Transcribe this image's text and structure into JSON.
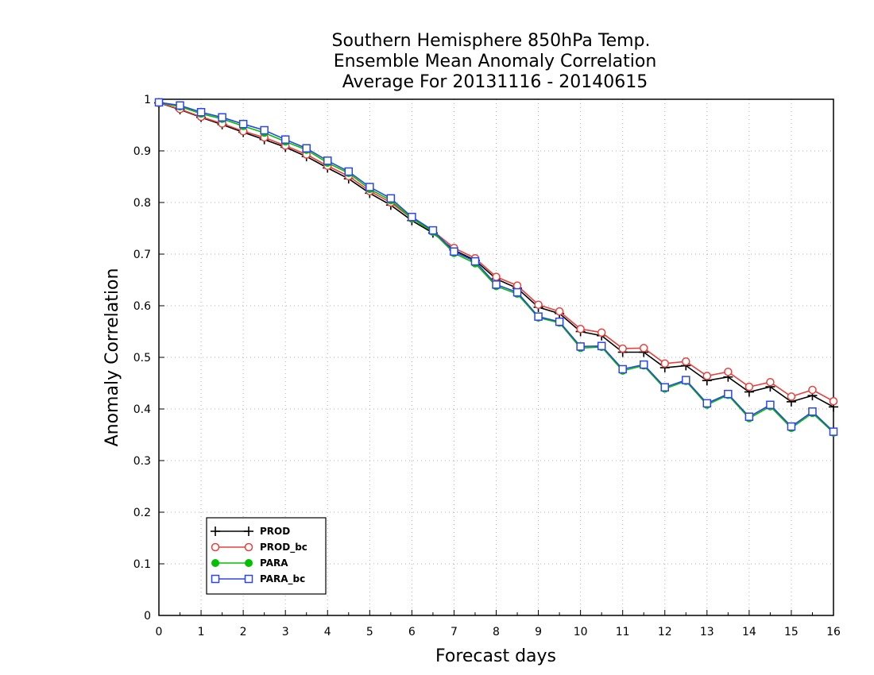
{
  "chart_data": {
    "type": "line",
    "title": [
      "Southern Hemisphere 850hPa Temp.",
      "Ensemble Mean Anomaly Correlation",
      "Average For 20131116 - 20140615"
    ],
    "xlabel": "Forecast days",
    "ylabel": "Anomaly Correlation",
    "xlim": [
      0,
      16
    ],
    "ylim": [
      0,
      1
    ],
    "xticks": [
      0,
      1,
      2,
      3,
      4,
      5,
      6,
      7,
      8,
      9,
      10,
      11,
      12,
      13,
      14,
      15,
      16
    ],
    "yticks": [
      0,
      0.1,
      0.2,
      0.3,
      0.4,
      0.5,
      0.6,
      0.7,
      0.8,
      0.9,
      1
    ],
    "ytick_labels": [
      "0",
      "0.1",
      "0.2",
      "0.3",
      "0.4",
      "0.5",
      "0.6",
      "0.7",
      "0.8",
      "0.9",
      "1"
    ],
    "grid": true,
    "legend_position": "bottom-left",
    "x": [
      0,
      0.5,
      1,
      1.5,
      2,
      2.5,
      3,
      3.5,
      4,
      4.5,
      5,
      5.5,
      6,
      6.5,
      7,
      7.5,
      8,
      8.5,
      9,
      9.5,
      10,
      10.5,
      11,
      11.5,
      12,
      12.5,
      13,
      13.5,
      14,
      14.5,
      15,
      15.5,
      16
    ],
    "series": [
      {
        "name": "PROD",
        "color": "#000000",
        "marker": "plus",
        "values": [
          0.993,
          0.98,
          0.965,
          0.951,
          0.936,
          0.922,
          0.907,
          0.889,
          0.867,
          0.846,
          0.818,
          0.795,
          0.765,
          0.741,
          0.708,
          0.688,
          0.652,
          0.634,
          0.597,
          0.585,
          0.55,
          0.542,
          0.51,
          0.51,
          0.48,
          0.484,
          0.455,
          0.462,
          0.433,
          0.443,
          0.414,
          0.426,
          0.404
        ]
      },
      {
        "name": "PROD_bc",
        "color": "#e8403c",
        "marker": "circle-open",
        "values": [
          0.993,
          0.981,
          0.966,
          0.953,
          0.938,
          0.926,
          0.91,
          0.893,
          0.871,
          0.851,
          0.822,
          0.8,
          0.769,
          0.745,
          0.712,
          0.692,
          0.656,
          0.639,
          0.602,
          0.589,
          0.555,
          0.548,
          0.517,
          0.518,
          0.488,
          0.492,
          0.464,
          0.472,
          0.443,
          0.452,
          0.424,
          0.437,
          0.415
        ]
      },
      {
        "name": "PARA",
        "color": "#00c000",
        "marker": "circle-filled",
        "values": [
          0.993,
          0.986,
          0.972,
          0.962,
          0.948,
          0.935,
          0.918,
          0.902,
          0.877,
          0.857,
          0.826,
          0.804,
          0.769,
          0.743,
          0.702,
          0.682,
          0.638,
          0.623,
          0.577,
          0.567,
          0.518,
          0.52,
          0.474,
          0.484,
          0.439,
          0.454,
          0.408,
          0.427,
          0.382,
          0.405,
          0.363,
          0.392,
          0.354
        ]
      },
      {
        "name": "PARA_bc",
        "color": "#2a46e8",
        "marker": "square-open",
        "values": [
          0.994,
          0.988,
          0.975,
          0.965,
          0.952,
          0.94,
          0.922,
          0.905,
          0.881,
          0.86,
          0.83,
          0.808,
          0.772,
          0.746,
          0.705,
          0.686,
          0.641,
          0.626,
          0.579,
          0.569,
          0.521,
          0.522,
          0.477,
          0.486,
          0.442,
          0.456,
          0.411,
          0.429,
          0.385,
          0.408,
          0.366,
          0.395,
          0.356
        ]
      }
    ]
  }
}
